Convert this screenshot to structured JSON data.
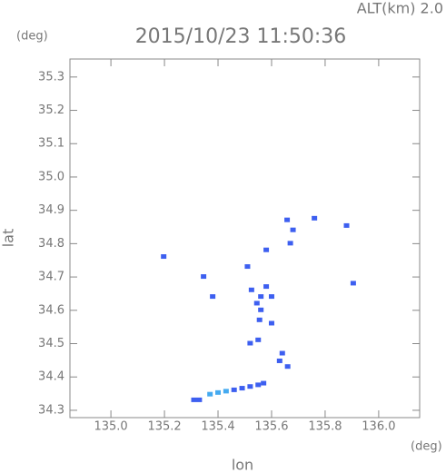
{
  "chart_data": {
    "type": "scatter",
    "title": "2015/10/23 11:50:36",
    "subtitle": "ALT(km) 2.0",
    "y_unit": "(deg)",
    "x_unit": "(deg)",
    "xlabel": "lon",
    "ylabel": "lat",
    "xlim": [
      134.847,
      136.153
    ],
    "ylim": [
      34.278,
      35.354
    ],
    "xticks": [
      {
        "value": 135.0,
        "label": "135.0"
      },
      135.2,
      135.4,
      135.6,
      135.8,
      {
        "value": 136.0,
        "label": "136.0"
      }
    ],
    "yticks": [
      34.3,
      34.4,
      34.5,
      34.6,
      34.7,
      34.8,
      34.9,
      {
        "value": 35.0,
        "label": "35.0"
      },
      35.1,
      35.2,
      35.3
    ],
    "series": [
      {
        "color": "#3d5ff0",
        "x": [
          135.197,
          135.346,
          135.38,
          135.51,
          135.525,
          135.545,
          135.56,
          135.58,
          135.6,
          135.658,
          135.76,
          135.68,
          135.67,
          135.58,
          135.88,
          135.905,
          135.52,
          135.55,
          135.63,
          135.66,
          135.64,
          135.6,
          135.555,
          135.56,
          135.46,
          135.49,
          135.52,
          135.55,
          135.57,
          135.31,
          135.33
        ],
        "values": [
          34.76,
          34.7,
          34.64,
          34.73,
          34.66,
          34.62,
          34.6,
          34.67,
          34.64,
          34.87,
          34.875,
          34.84,
          34.8,
          34.78,
          34.853,
          34.68,
          34.5,
          34.51,
          34.447,
          34.43,
          34.47,
          34.56,
          34.57,
          34.64,
          34.36,
          34.365,
          34.37,
          34.375,
          34.38,
          34.33,
          34.33
        ]
      },
      {
        "color": "#45aaf0",
        "x": [
          135.37,
          135.4,
          135.43
        ],
        "values": [
          34.347,
          34.352,
          34.356
        ]
      }
    ]
  }
}
